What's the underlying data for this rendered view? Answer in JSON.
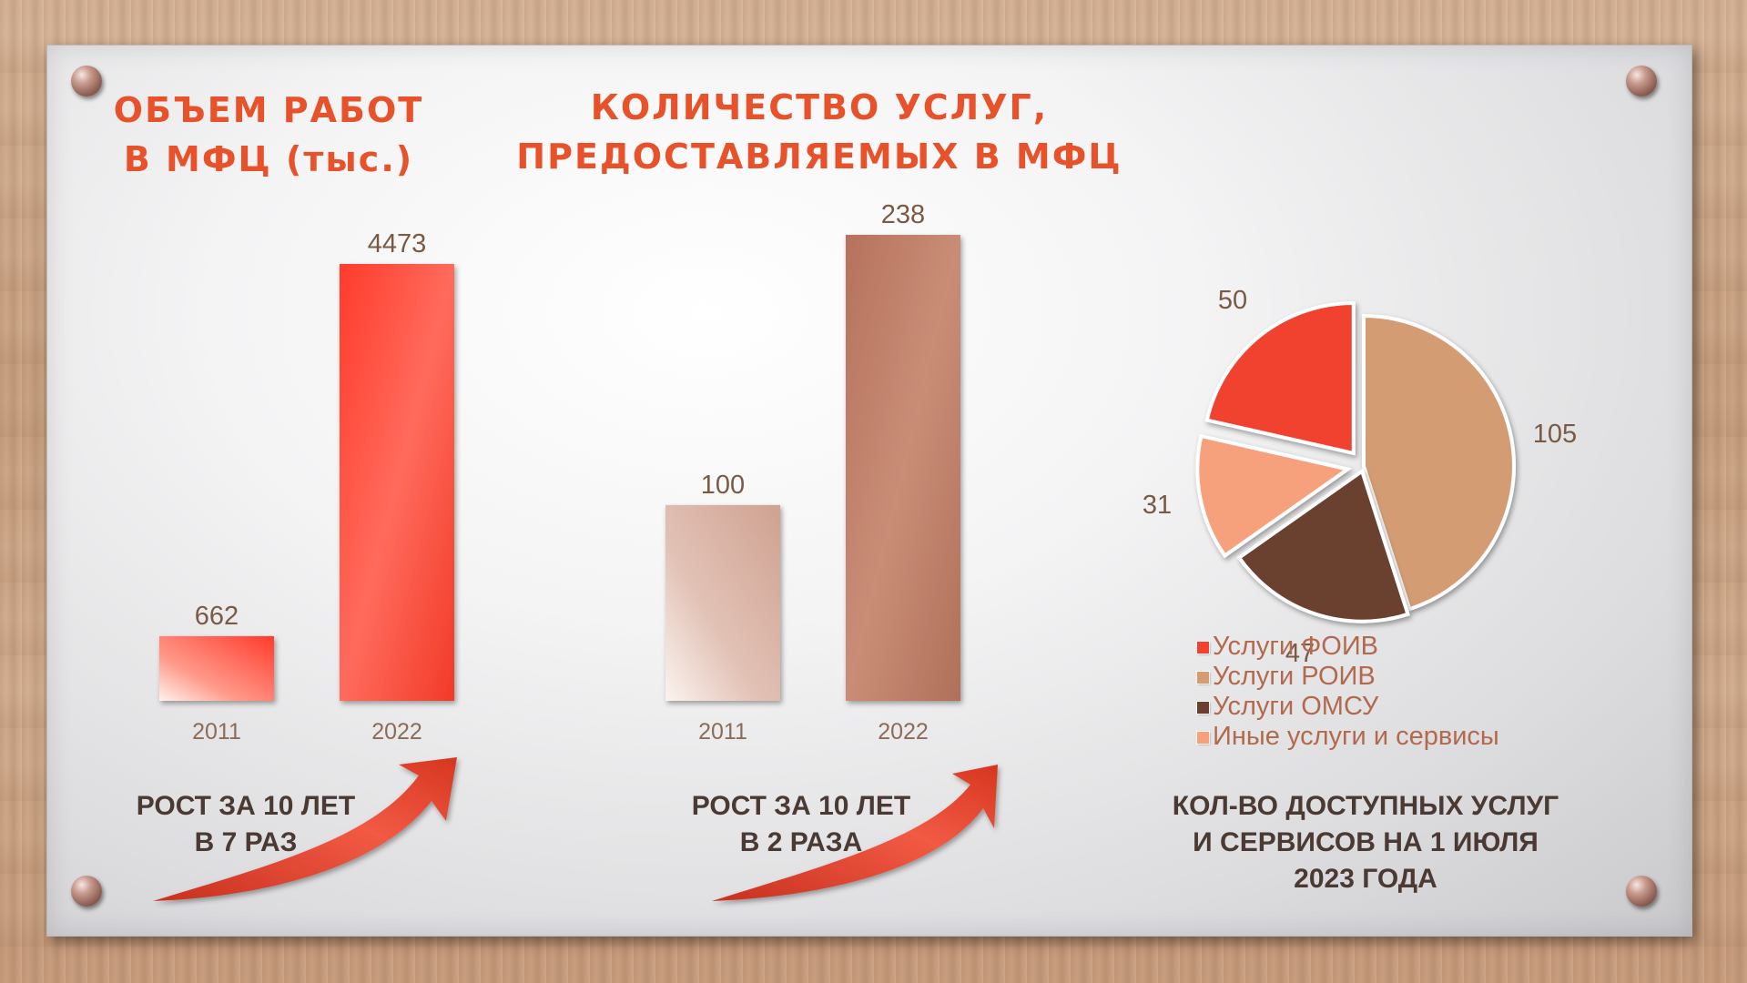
{
  "titles": {
    "volume": [
      "ОБЪЕМ РАБОТ",
      "В МФЦ (тыс.)"
    ],
    "services": [
      "КОЛИЧЕСТВО УСЛУГ,",
      "ПРЕДОСТАВЛЯЕМЫХ В МФЦ"
    ]
  },
  "captions": {
    "volume": [
      "РОСТ ЗА 10 ЛЕТ",
      "В 7 РАЗ"
    ],
    "services": [
      "РОСТ ЗА 10 ЛЕТ",
      "В 2 РАЗА"
    ],
    "pie": [
      "КОЛ-ВО ДОСТУПНЫХ УСЛУГ",
      "И СЕРВИСОВ НА 1 ИЮЛЯ",
      "2023 ГОДА"
    ]
  },
  "colors": {
    "title": "#e8522b",
    "bar_red": "#ff4a3a",
    "bar_brown": "#b87a62",
    "pie_foiv": "#f0422f",
    "pie_roiv": "#d39c72",
    "pie_omsu": "#6a3f2f",
    "pie_other": "#f7a07c"
  },
  "chart_data": [
    {
      "type": "bar",
      "categories": [
        "2011",
        "2022"
      ],
      "values": [
        662,
        4473
      ],
      "title": "ОБЪЕМ РАБОТ В МФЦ (тыс.)",
      "ylim": [
        0,
        4473
      ],
      "grid": false
    },
    {
      "type": "bar",
      "categories": [
        "2011",
        "2022"
      ],
      "values": [
        100,
        238
      ],
      "title": "КОЛИЧЕСТВО УСЛУГ, ПРЕДОСТАВЛЯЕМЫХ В МФЦ",
      "ylim": [
        0,
        238
      ],
      "grid": false
    },
    {
      "type": "pie",
      "labels": [
        "Услуги ФОИВ",
        "Услуги РОИВ",
        "Услуги ОМСУ",
        "Иные услуги и сервисы"
      ],
      "values": [
        50,
        105,
        47,
        31
      ],
      "legend": "bottom",
      "title": "КОЛ-ВО ДОСТУПНЫХ УСЛУГ И СЕРВИСОВ НА 1 ИЮЛЯ 2023 ГОДА"
    }
  ]
}
